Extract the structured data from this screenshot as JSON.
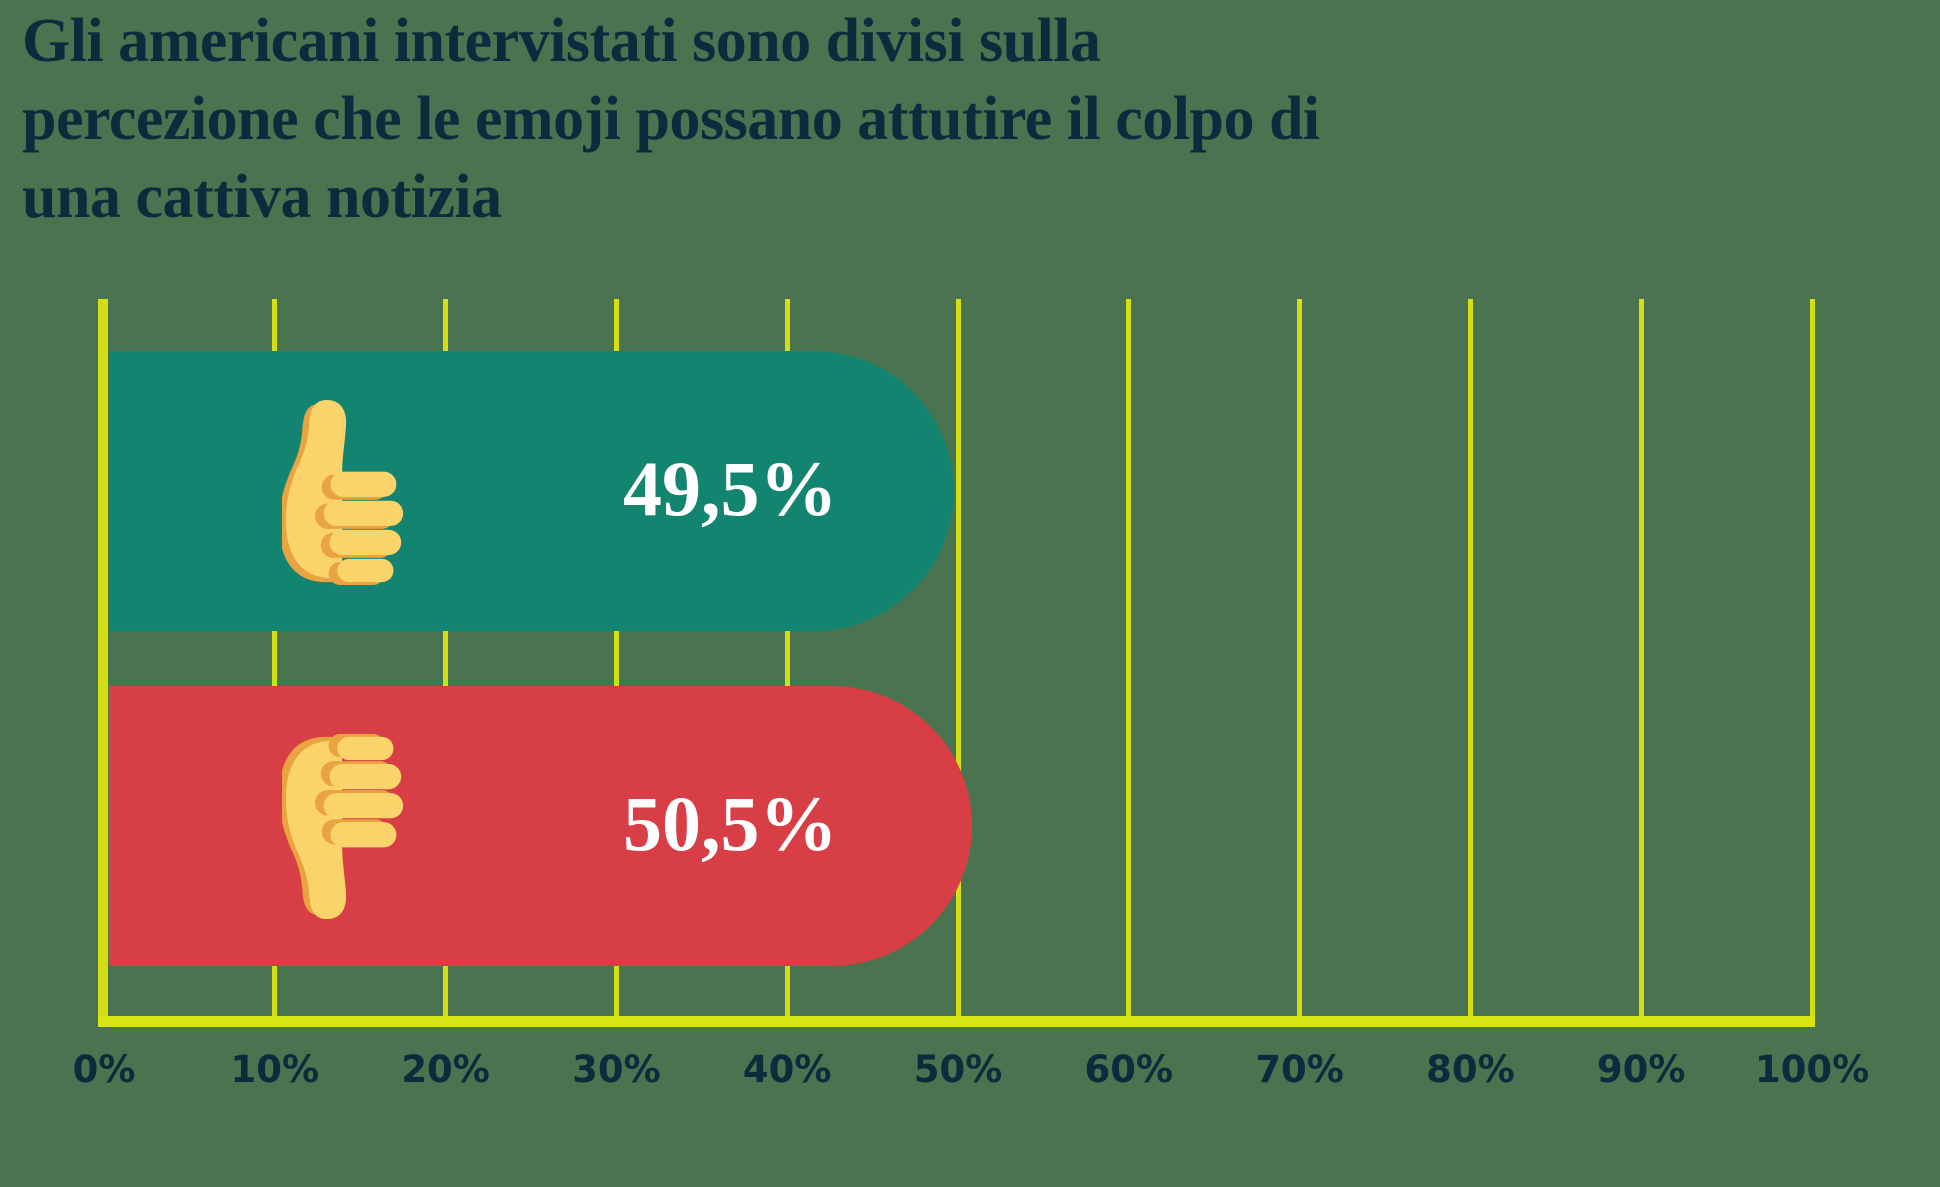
{
  "title": {
    "lines": [
      "Gli americani intervistati sono divisi sulla",
      "percezione che le emoji possano attutire il colpo di",
      "una cattiva notizia"
    ]
  },
  "chart_data": {
    "type": "bar",
    "orientation": "horizontal",
    "title": "Gli americani intervistati sono divisi sulla percezione che le emoji possano attutire il colpo di una cattiva notizia",
    "categories": [
      "thumbs-up",
      "thumbs-down"
    ],
    "values": [
      49.5,
      50.5
    ],
    "value_labels": [
      "49,5%",
      "50,5%"
    ],
    "x_ticks": [
      "0%",
      "10%",
      "20%",
      "30%",
      "40%",
      "50%",
      "60%",
      "70%",
      "80%",
      "90%",
      "100%"
    ],
    "xlim": [
      0,
      100
    ],
    "grid": true,
    "legend": "none",
    "bar_colors": [
      "#138470",
      "#D73E45"
    ]
  },
  "colors": {
    "background": "#4A7450",
    "grid_yellow": "#D3DF14",
    "axis_yellow": "#D9E512",
    "title_navy": "#0E2B3D",
    "value_white": "#FFFFFF",
    "emoji_yellow": "#FBD36B",
    "emoji_orange": "#E9A440"
  }
}
